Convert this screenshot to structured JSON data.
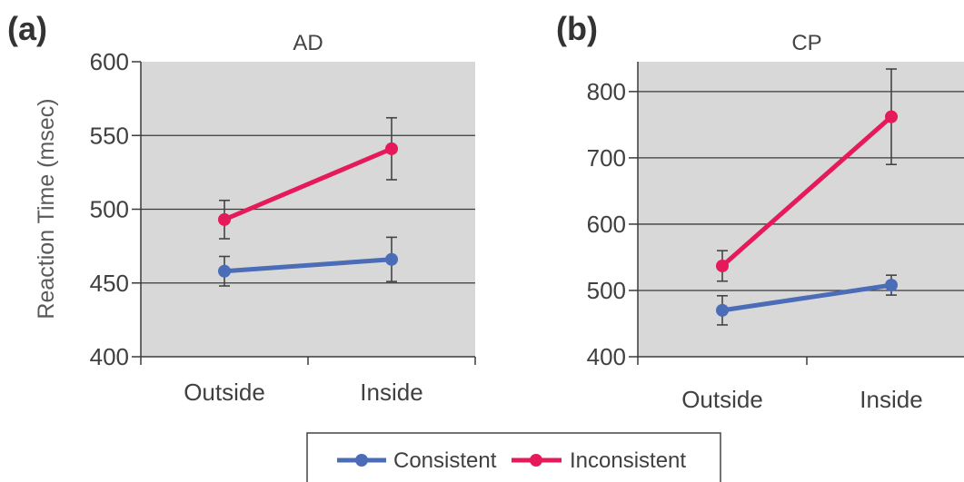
{
  "chart_data": [
    {
      "type": "line",
      "panel_label": "(a)",
      "title": "AD",
      "ylabel": "Reaction Time (msec)",
      "categories": [
        "Outside",
        "Inside"
      ],
      "ylim": [
        400,
        600
      ],
      "yticks": [
        400,
        450,
        500,
        550,
        600
      ],
      "grid": true,
      "legend": "bottom-center",
      "series": [
        {
          "name": "Consistent",
          "color": "#4b6cb7",
          "values": [
            458,
            466
          ],
          "error_low": [
            448,
            451
          ],
          "error_high": [
            468,
            481
          ]
        },
        {
          "name": "Inconsistent",
          "color": "#e6195a",
          "values": [
            493,
            541
          ],
          "error_low": [
            480,
            520
          ],
          "error_high": [
            506,
            562
          ]
        }
      ]
    },
    {
      "type": "line",
      "panel_label": "(b)",
      "title": "CP",
      "categories": [
        "Outside",
        "Inside"
      ],
      "ylim": [
        400,
        845
      ],
      "yticks": [
        400,
        500,
        600,
        700,
        800
      ],
      "grid": true,
      "legend": "bottom-center",
      "series": [
        {
          "name": "Consistent",
          "color": "#4b6cb7",
          "values": [
            470,
            508
          ],
          "error_low": [
            448,
            493
          ],
          "error_high": [
            492,
            523
          ]
        },
        {
          "name": "Inconsistent",
          "color": "#e6195a",
          "values": [
            537,
            762
          ],
          "error_low": [
            514,
            690
          ],
          "error_high": [
            560,
            834
          ]
        }
      ]
    }
  ]
}
